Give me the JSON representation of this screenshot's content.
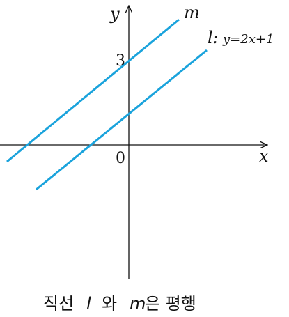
{
  "graph": {
    "axis_labels": {
      "x": "x",
      "y": "y"
    },
    "origin_label": "0",
    "y_intercept_label": "3",
    "line_m": {
      "name": "m"
    },
    "line_l": {
      "name": "l:",
      "equation": "y=2x+1"
    }
  },
  "caption": {
    "parts": [
      "직선",
      "l",
      "와",
      "m",
      "은 평행"
    ]
  }
}
